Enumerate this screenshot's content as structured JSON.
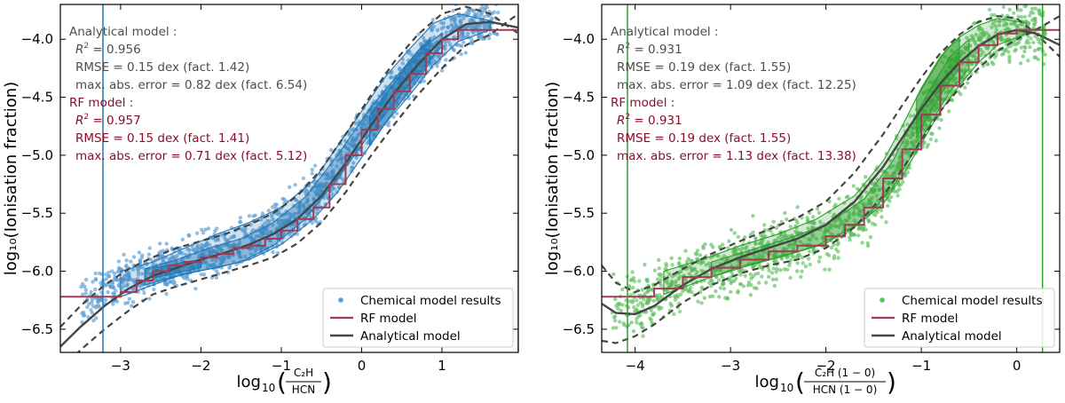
{
  "chart_data": [
    {
      "type": "scatter",
      "xlabel": "log₁₀(C₂H / HCN)",
      "xlabel_parts": {
        "prefix": "log",
        "sub": "10",
        "num": "C₂H",
        "den": "HCN"
      },
      "ylabel": "log₁₀(Ionisation fraction)",
      "xlim": [
        -3.75,
        1.95
      ],
      "ylim": [
        -6.7,
        -3.7
      ],
      "xticks": [
        -3,
        -2,
        -1,
        0,
        1
      ],
      "xtick_labels": [
        "−3",
        "−2",
        "−1",
        "0",
        "1"
      ],
      "yticks": [
        -6.5,
        -6.0,
        -5.5,
        -5.0,
        -4.5,
        -4.0
      ],
      "ytick_labels": [
        "−6.5",
        "−6.0",
        "−5.5",
        "−5.0",
        "−4.5",
        "−4.0"
      ],
      "colors": {
        "points": "#5b9bd1",
        "density_fill": "#1f77b4",
        "density_line": "#1f77b4",
        "rf": "#a23a55",
        "analytical": "#454545",
        "vline": "#1f77b4",
        "analytical_text": "#4d4d4d",
        "rf_text": "#8c0d2a"
      },
      "vlines": [
        -3.22,
        1.95
      ],
      "annotations": {
        "analytical_title": "Analytical model :",
        "analytical_r2_label": "R",
        "analytical_r2_value": " = 0.956",
        "analytical_rmse": "RMSE  = 0.15 dex (fact. 1.42)",
        "analytical_maxerr": "max. abs. error  = 0.82 dex (fact. 6.54)",
        "rf_title": "RF model :",
        "rf_r2_label": "R",
        "rf_r2_value": " = 0.957",
        "rf_rmse": "RMSE  = 0.15 dex (fact. 1.41)",
        "rf_maxerr": "max. abs. error  = 0.71 dex (fact. 5.12)"
      },
      "legend": {
        "placement": "lower-right",
        "items": [
          "Chemical model results",
          "RF model",
          "Analytical model"
        ]
      },
      "scatter_trend": {
        "x": [
          -3.6,
          -3.0,
          -2.6,
          -2.2,
          -1.8,
          -1.4,
          -1.0,
          -0.6,
          -0.2,
          0.1,
          0.4,
          0.7,
          1.0,
          1.3,
          1.6
        ],
        "y": [
          -6.3,
          -6.1,
          -6.0,
          -5.93,
          -5.84,
          -5.75,
          -5.6,
          -5.38,
          -5.05,
          -4.7,
          -4.45,
          -4.2,
          -4.0,
          -3.88,
          -3.85
        ],
        "spread": 0.13,
        "x_range": [
          -3.5,
          1.7
        ]
      },
      "density_contours": [
        {
          "level": 1,
          "x": [
            -3.0,
            -2.6,
            -2.2,
            -1.8,
            -1.4,
            -1.0,
            -0.6,
            -0.3,
            0.0,
            0.3,
            0.6,
            0.9,
            1.2,
            1.6
          ],
          "lower": [
            -6.22,
            -6.12,
            -6.02,
            -5.97,
            -5.9,
            -5.77,
            -5.55,
            -5.32,
            -5.02,
            -4.72,
            -4.48,
            -4.22,
            -4.02,
            -3.92
          ],
          "upper": [
            -6.0,
            -5.92,
            -5.8,
            -5.68,
            -5.58,
            -5.45,
            -5.22,
            -4.92,
            -4.62,
            -4.32,
            -4.08,
            -3.86,
            -3.78,
            -3.84
          ]
        },
        {
          "level": 2,
          "x": [
            -2.7,
            -2.3,
            -1.9,
            -1.5,
            -1.1,
            -0.7,
            -0.3,
            0.1,
            0.4,
            0.7,
            1.0
          ],
          "lower": [
            -6.12,
            -6.04,
            -5.98,
            -5.92,
            -5.78,
            -5.55,
            -5.2,
            -4.82,
            -4.55,
            -4.3,
            -4.06
          ],
          "upper": [
            -5.98,
            -5.9,
            -5.8,
            -5.72,
            -5.58,
            -5.36,
            -5.0,
            -4.6,
            -4.35,
            -4.1,
            -3.95
          ]
        },
        {
          "level": 3,
          "x": [
            -2.6,
            -2.4,
            -2.2,
            -2.0
          ],
          "lower": [
            -6.06,
            -6.03,
            -6.0,
            -5.97
          ],
          "upper": [
            -5.97,
            -5.95,
            -5.92,
            -5.9
          ]
        },
        {
          "level": 3,
          "x": [
            0.1,
            0.4,
            0.7,
            0.85
          ],
          "lower": [
            -4.92,
            -4.62,
            -4.35,
            -4.2
          ],
          "upper": [
            -4.66,
            -4.38,
            -4.1,
            -4.0
          ]
        }
      ],
      "rf_model": {
        "x": [
          -3.75,
          -3.2,
          -3.0,
          -2.8,
          -2.6,
          -2.4,
          -2.2,
          -2.0,
          -1.8,
          -1.6,
          -1.4,
          -1.2,
          -1.0,
          -0.8,
          -0.6,
          -0.4,
          -0.2,
          0.0,
          0.2,
          0.4,
          0.6,
          0.8,
          1.0,
          1.2,
          1.95
        ],
        "y": [
          -6.22,
          -6.22,
          -6.18,
          -6.08,
          -6.0,
          -5.95,
          -5.92,
          -5.88,
          -5.85,
          -5.8,
          -5.78,
          -5.72,
          -5.65,
          -5.55,
          -5.45,
          -5.25,
          -5.0,
          -4.78,
          -4.6,
          -4.45,
          -4.3,
          -4.12,
          -4.0,
          -3.92,
          -3.92
        ]
      },
      "analytical_model": {
        "center": {
          "x": [
            -3.75,
            -3.5,
            -3.2,
            -2.9,
            -2.6,
            -2.3,
            -2.0,
            -1.7,
            -1.4,
            -1.1,
            -0.8,
            -0.5,
            -0.2,
            0.1,
            0.4,
            0.7,
            1.0,
            1.3,
            1.6,
            1.95
          ],
          "y": [
            -6.65,
            -6.48,
            -6.3,
            -6.15,
            -6.04,
            -5.97,
            -5.9,
            -5.84,
            -5.77,
            -5.68,
            -5.55,
            -5.35,
            -5.07,
            -4.76,
            -4.47,
            -4.22,
            -4.0,
            -3.87,
            -3.85,
            -3.9
          ]
        },
        "upper": {
          "x": [
            -3.75,
            -3.5,
            -3.2,
            -2.9,
            -2.6,
            -2.3,
            -2.0,
            -1.7,
            -1.4,
            -1.1,
            -0.8,
            -0.5,
            -0.2,
            0.1,
            0.4,
            0.7,
            1.0,
            1.3,
            1.6,
            1.95
          ],
          "y": [
            -6.48,
            -6.3,
            -6.12,
            -5.98,
            -5.88,
            -5.8,
            -5.74,
            -5.68,
            -5.6,
            -5.5,
            -5.35,
            -5.12,
            -4.82,
            -4.5,
            -4.2,
            -3.96,
            -3.78,
            -3.72,
            -3.78,
            -3.95
          ]
        },
        "lower": {
          "x": [
            -3.75,
            -3.5,
            -3.2,
            -2.9,
            -2.6,
            -2.3,
            -2.0,
            -1.7,
            -1.4,
            -1.1,
            -0.8,
            -0.5,
            -0.2,
            0.1,
            0.4,
            0.7,
            1.0,
            1.3,
            1.6,
            1.95
          ],
          "y": [
            -6.85,
            -6.68,
            -6.5,
            -6.34,
            -6.2,
            -6.13,
            -6.07,
            -6.01,
            -5.95,
            -5.88,
            -5.76,
            -5.58,
            -5.32,
            -5.02,
            -4.74,
            -4.48,
            -4.25,
            -4.05,
            -3.96,
            -3.78
          ]
        }
      }
    },
    {
      "type": "scatter",
      "xlabel": "log₁₀(C₂H (1−0) / HCN (1−0))",
      "xlabel_parts": {
        "prefix": "log",
        "sub": "10",
        "num": "C₂H (1 − 0)",
        "den": "HCN (1 − 0)"
      },
      "ylabel": "log₁₀(Ionisation fraction)",
      "xlim": [
        -4.35,
        0.45
      ],
      "ylim": [
        -6.7,
        -3.7
      ],
      "xticks": [
        -4,
        -3,
        -2,
        -1,
        0
      ],
      "xtick_labels": [
        "−4",
        "−3",
        "−2",
        "−1",
        "0"
      ],
      "yticks": [
        -6.5,
        -6.0,
        -5.5,
        -5.0,
        -4.5,
        -4.0
      ],
      "ytick_labels": [
        "−6.5",
        "−6.0",
        "−5.5",
        "−5.0",
        "−4.5",
        "−4.0"
      ],
      "colors": {
        "points": "#5fbf5f",
        "density_fill": "#2ca02c",
        "density_line": "#2ca02c",
        "rf": "#a23a55",
        "analytical": "#454545",
        "vline": "#2ca02c",
        "analytical_text": "#4d4d4d",
        "rf_text": "#8c0d2a"
      },
      "vlines": [
        -4.08,
        0.27
      ],
      "annotations": {
        "analytical_title": "Analytical model :",
        "analytical_r2_label": "R",
        "analytical_r2_value": " = 0.931",
        "analytical_rmse": "RMSE  = 0.19 dex (fact. 1.55)",
        "analytical_maxerr": "max. abs. error  = 1.09 dex (fact. 12.25)",
        "rf_title": "RF model :",
        "rf_r2_label": "R",
        "rf_r2_value": " = 0.931",
        "rf_rmse": "RMSE  = 0.19 dex (fact. 1.55)",
        "rf_maxerr": "max. abs. error  = 1.13 dex (fact. 13.38)"
      },
      "legend": {
        "placement": "lower-right",
        "items": [
          "Chemical model results",
          "RF model",
          "Analytical model"
        ]
      },
      "scatter_trend": {
        "x": [
          -4.3,
          -3.9,
          -3.5,
          -3.1,
          -2.7,
          -2.3,
          -1.9,
          -1.6,
          -1.3,
          -1.1,
          -0.9,
          -0.7,
          -0.5,
          -0.3,
          0.0,
          0.3
        ],
        "y": [
          -6.35,
          -6.22,
          -6.08,
          -5.96,
          -5.86,
          -5.77,
          -5.65,
          -5.5,
          -5.2,
          -4.9,
          -4.6,
          -4.35,
          -4.15,
          -4.0,
          -3.92,
          -3.9
        ],
        "spread": 0.16,
        "x_range": [
          -4.25,
          0.3
        ]
      },
      "density_contours": [
        {
          "level": 1,
          "x": [
            -3.7,
            -3.3,
            -2.9,
            -2.5,
            -2.1,
            -1.7,
            -1.4,
            -1.2,
            -1.0,
            -0.8,
            -0.6,
            -0.4,
            -0.2,
            0.1
          ],
          "lower": [
            -6.2,
            -6.08,
            -5.96,
            -5.88,
            -5.78,
            -5.62,
            -5.42,
            -5.18,
            -4.9,
            -4.62,
            -4.4,
            -4.2,
            -4.05,
            -3.95
          ],
          "upper": [
            -6.0,
            -5.9,
            -5.78,
            -5.68,
            -5.55,
            -5.35,
            -5.05,
            -4.75,
            -4.42,
            -4.15,
            -3.98,
            -3.88,
            -3.82,
            -3.86
          ]
        },
        {
          "level": 2,
          "x": [
            -3.2,
            -2.8,
            -2.4,
            -2.0,
            -1.6,
            -1.3,
            -1.1,
            -0.9,
            -0.7,
            -0.5
          ],
          "lower": [
            -6.05,
            -5.95,
            -5.86,
            -5.76,
            -5.56,
            -5.28,
            -5.0,
            -4.72,
            -4.45,
            -4.25
          ],
          "upper": [
            -5.92,
            -5.82,
            -5.72,
            -5.6,
            -5.38,
            -5.05,
            -4.72,
            -4.42,
            -4.15,
            -4.0
          ]
        },
        {
          "level": 3,
          "x": [
            -1.05,
            -0.9,
            -0.75,
            -0.6
          ],
          "lower": [
            -4.85,
            -4.62,
            -4.42,
            -4.25
          ],
          "upper": [
            -4.5,
            -4.3,
            -4.1,
            -3.98
          ]
        }
      ],
      "rf_model": {
        "x": [
          -4.35,
          -4.08,
          -3.8,
          -3.5,
          -3.2,
          -2.9,
          -2.6,
          -2.3,
          -2.0,
          -1.8,
          -1.6,
          -1.4,
          -1.2,
          -1.0,
          -0.8,
          -0.6,
          -0.4,
          -0.2,
          0.0,
          0.45
        ],
        "y": [
          -6.22,
          -6.22,
          -6.15,
          -6.05,
          -5.97,
          -5.9,
          -5.83,
          -5.78,
          -5.7,
          -5.6,
          -5.45,
          -5.2,
          -4.95,
          -4.65,
          -4.4,
          -4.2,
          -4.05,
          -3.95,
          -3.92,
          -3.92
        ]
      },
      "analytical_model": {
        "center": {
          "x": [
            -4.35,
            -4.2,
            -4.0,
            -3.8,
            -3.5,
            -3.2,
            -2.9,
            -2.6,
            -2.3,
            -2.0,
            -1.7,
            -1.4,
            -1.2,
            -1.0,
            -0.8,
            -0.6,
            -0.4,
            -0.2,
            0.0,
            0.2,
            0.45
          ],
          "y": [
            -6.28,
            -6.36,
            -6.37,
            -6.3,
            -6.12,
            -5.98,
            -5.88,
            -5.8,
            -5.72,
            -5.6,
            -5.4,
            -5.1,
            -4.85,
            -4.6,
            -4.38,
            -4.2,
            -4.06,
            -3.96,
            -3.92,
            -3.95,
            -4.05
          ]
        },
        "upper": {
          "x": [
            -4.35,
            -4.2,
            -4.0,
            -3.8,
            -3.5,
            -3.2,
            -2.9,
            -2.6,
            -2.3,
            -2.0,
            -1.7,
            -1.4,
            -1.2,
            -1.0,
            -0.8,
            -0.6,
            -0.4,
            -0.2,
            0.0,
            0.2,
            0.45
          ],
          "y": [
            -5.95,
            -6.1,
            -6.18,
            -6.12,
            -5.98,
            -5.85,
            -5.74,
            -5.64,
            -5.54,
            -5.4,
            -5.15,
            -4.82,
            -4.57,
            -4.33,
            -4.12,
            -3.96,
            -3.85,
            -3.8,
            -3.82,
            -3.95,
            -4.15
          ]
        },
        "lower": {
          "x": [
            -4.35,
            -4.2,
            -4.0,
            -3.8,
            -3.5,
            -3.2,
            -2.9,
            -2.6,
            -2.3,
            -2.0,
            -1.7,
            -1.4,
            -1.2,
            -1.0,
            -0.8,
            -0.6,
            -0.4,
            -0.2,
            0.0,
            0.2,
            0.45
          ],
          "y": [
            -6.6,
            -6.62,
            -6.56,
            -6.46,
            -6.27,
            -6.12,
            -6.02,
            -5.95,
            -5.9,
            -5.8,
            -5.62,
            -5.35,
            -5.12,
            -4.87,
            -4.62,
            -4.42,
            -4.25,
            -4.1,
            -4.0,
            -3.92,
            -3.8
          ]
        }
      }
    }
  ]
}
